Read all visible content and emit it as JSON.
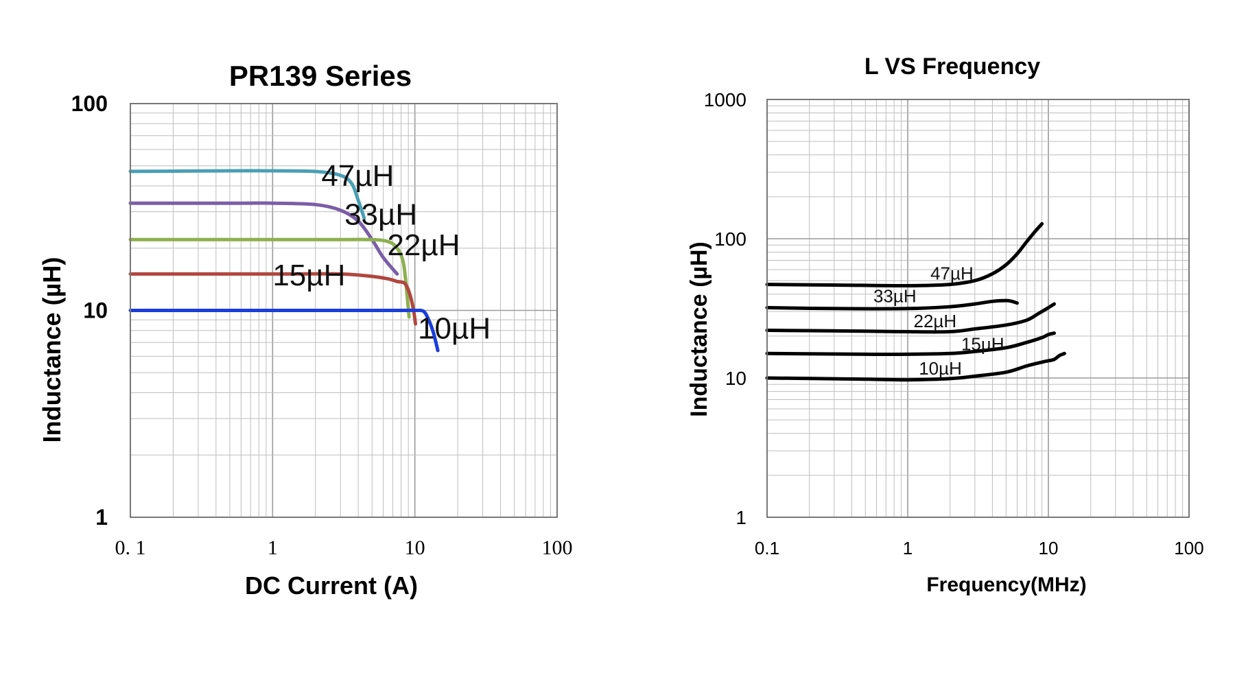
{
  "chart_data": [
    {
      "type": "line",
      "title": "PR139 Series",
      "xlabel": "DC Current (A)",
      "ylabel": "Inductance (µH)",
      "xscale": "log",
      "yscale": "log",
      "xlim": [
        0.1,
        100
      ],
      "ylim": [
        1,
        100
      ],
      "x_ticks": [
        {
          "value": 0.1,
          "label": "0. 1"
        },
        {
          "value": 1,
          "label": "1"
        },
        {
          "value": 10,
          "label": "10"
        },
        {
          "value": 100,
          "label": "100"
        }
      ],
      "y_ticks": [
        {
          "value": 1,
          "label": "1"
        },
        {
          "value": 10,
          "label": "10"
        },
        {
          "value": 100,
          "label": "100"
        }
      ],
      "grid": true,
      "series": [
        {
          "name": "47µH",
          "color": "#4a9fb5",
          "label_at": [
            2.2,
            40
          ],
          "points": [
            [
              0.1,
              47
            ],
            [
              0.5,
              47.3
            ],
            [
              1,
              47.3
            ],
            [
              2,
              47
            ],
            [
              3,
              45
            ],
            [
              3.6,
              41
            ],
            [
              4,
              34
            ],
            [
              4.4,
              28
            ]
          ]
        },
        {
          "name": "33µH",
          "color": "#7b5ea7",
          "label_at": [
            3.2,
            26
          ],
          "points": [
            [
              0.1,
              33
            ],
            [
              0.5,
              33
            ],
            [
              1,
              33
            ],
            [
              2,
              32.5
            ],
            [
              3,
              30.5
            ],
            [
              4,
              27
            ],
            [
              5,
              22
            ],
            [
              6,
              18
            ],
            [
              7.5,
              15
            ]
          ]
        },
        {
          "name": "22µH",
          "color": "#8db050",
          "label_at": [
            6.4,
            18.5
          ],
          "points": [
            [
              0.1,
              22
            ],
            [
              1,
              22
            ],
            [
              3,
              22
            ],
            [
              5,
              22
            ],
            [
              6.5,
              21.5
            ],
            [
              7.5,
              20
            ],
            [
              8.3,
              17
            ],
            [
              8.8,
              12
            ],
            [
              9.1,
              9.3
            ]
          ]
        },
        {
          "name": "15µH",
          "color": "#b0473f",
          "label_at": [
            1.0,
            13.2
          ],
          "points": [
            [
              0.1,
              15
            ],
            [
              1,
              15
            ],
            [
              3,
              15
            ],
            [
              5,
              14.6
            ],
            [
              6.5,
              14.2
            ],
            [
              7.5,
              13.8
            ],
            [
              8.5,
              13.5
            ],
            [
              9.2,
              12
            ],
            [
              9.8,
              10
            ],
            [
              10.1,
              8.6
            ]
          ]
        },
        {
          "name": "10µH",
          "color": "#1a3ddb",
          "label_at": [
            10.5,
            7.3
          ],
          "points": [
            [
              0.1,
              10
            ],
            [
              1,
              10
            ],
            [
              5,
              10
            ],
            [
              8,
              10
            ],
            [
              10,
              10
            ],
            [
              11.5,
              9.9
            ],
            [
              12.5,
              9
            ],
            [
              13.5,
              7.8
            ],
            [
              14.5,
              6.4
            ]
          ]
        }
      ]
    },
    {
      "type": "line",
      "title": "L VS Frequency",
      "xlabel": "Frequency(MHz)",
      "ylabel": "Inductance (µH)",
      "xscale": "log",
      "yscale": "log",
      "xlim": [
        0.1,
        100
      ],
      "ylim": [
        1,
        1000
      ],
      "x_ticks": [
        {
          "value": 0.1,
          "label": "0.1"
        },
        {
          "value": 1,
          "label": "1"
        },
        {
          "value": 10,
          "label": "10"
        },
        {
          "value": 100,
          "label": "100"
        }
      ],
      "y_ticks": [
        {
          "value": 1,
          "label": "1"
        },
        {
          "value": 10,
          "label": "10"
        },
        {
          "value": 100,
          "label": "100"
        },
        {
          "value": 1000,
          "label": "1000"
        }
      ],
      "grid": true,
      "series": [
        {
          "name": "47µH",
          "color": "#000000",
          "label_at": [
            1.45,
            51
          ],
          "points": [
            [
              0.1,
              47
            ],
            [
              0.3,
              46.5
            ],
            [
              1,
              46
            ],
            [
              2,
              47
            ],
            [
              3,
              50
            ],
            [
              4,
              56
            ],
            [
              5,
              65
            ],
            [
              6,
              78
            ],
            [
              7,
              95
            ],
            [
              8,
              112
            ],
            [
              9,
              128
            ]
          ]
        },
        {
          "name": "33µH",
          "color": "#000000",
          "label_at": [
            0.57,
            35
          ],
          "points": [
            [
              0.1,
              32
            ],
            [
              0.3,
              31.5
            ],
            [
              1,
              31.5
            ],
            [
              2,
              32.5
            ],
            [
              3,
              34
            ],
            [
              4,
              35.5
            ],
            [
              5,
              36
            ],
            [
              5.5,
              35.5
            ],
            [
              6,
              34.5
            ]
          ]
        },
        {
          "name": "22µH",
          "color": "#000000",
          "label_at": [
            1.1,
            23.2
          ],
          "points": [
            [
              0.1,
              22
            ],
            [
              0.5,
              21.7
            ],
            [
              1,
              21.5
            ],
            [
              2,
              21.5
            ],
            [
              3,
              22.5
            ],
            [
              5,
              24
            ],
            [
              7,
              26
            ],
            [
              8.5,
              29
            ],
            [
              10,
              32
            ],
            [
              11,
              34
            ]
          ]
        },
        {
          "name": "15µH",
          "color": "#000000",
          "label_at": [
            2.4,
            15.8
          ],
          "points": [
            [
              0.1,
              15
            ],
            [
              0.5,
              14.8
            ],
            [
              1,
              14.8
            ],
            [
              2,
              15
            ],
            [
              3,
              15.5
            ],
            [
              5,
              16.5
            ],
            [
              7,
              18
            ],
            [
              9,
              19.5
            ],
            [
              10,
              20.5
            ],
            [
              11,
              21
            ]
          ]
        },
        {
          "name": "10µH",
          "color": "#000000",
          "label_at": [
            1.2,
            10.6
          ],
          "points": [
            [
              0.1,
              10
            ],
            [
              0.5,
              9.8
            ],
            [
              1,
              9.7
            ],
            [
              2,
              9.9
            ],
            [
              3,
              10.3
            ],
            [
              5,
              11
            ],
            [
              7,
              12.2
            ],
            [
              9,
              13
            ],
            [
              10,
              13.3
            ],
            [
              11,
              13.6
            ],
            [
              12,
              14.5
            ],
            [
              13,
              15
            ]
          ]
        }
      ]
    }
  ]
}
